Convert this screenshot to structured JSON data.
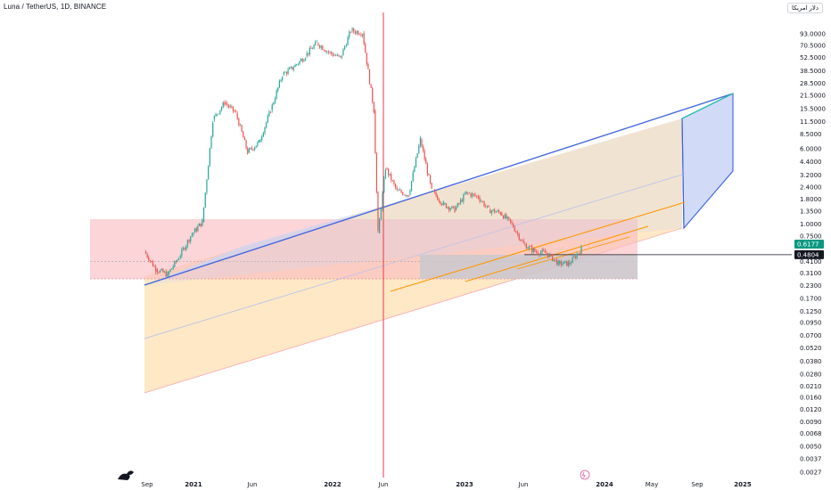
{
  "header": {
    "symbol_line": "Luna / TetherUS, 1D, BINANCE",
    "currency_label": "دلار امریکا"
  },
  "colors": {
    "up": "#26a69a",
    "down": "#ef5350",
    "channel_blue_fill": "#c9d5f7",
    "channel_blue_line": "#3d62e0",
    "orange_fill": "#ffe0b2",
    "orange_line": "#ff9800",
    "red_zone": "#f8b9be",
    "gray_zone": "#c4c8cf",
    "teal_segment": "#2bbfae",
    "vertical_line": "#f23645",
    "current_price_label_bg": "#089981",
    "crosshair_label_bg": "#131722"
  },
  "chart_data": {
    "type": "line",
    "title": "Luna / TetherUS, 1D, BINANCE",
    "y_scale": "log",
    "ylim": [
      0.0027,
      130
    ],
    "y_ticks": [
      "93.0000",
      "70.5000",
      "52.5000",
      "38.5000",
      "28.5000",
      "21.5000",
      "15.5000",
      "11.5000",
      "8.5000",
      "6.0000",
      "4.4000",
      "3.2000",
      "2.4000",
      "1.8000",
      "1.3500",
      "1.0000",
      "0.7500",
      "0.4100",
      "0.3100",
      "0.2300",
      "0.1700",
      "0.1250",
      "0.0950",
      "0.0700",
      "0.0520",
      "0.0380",
      "0.0280",
      "0.0210",
      "0.0160",
      "0.0120",
      "0.0090",
      "0.0068",
      "0.0050",
      "0.0037",
      "0.0027"
    ],
    "x_ticks": [
      "Sep",
      "2021",
      "Jun",
      "2022",
      "Jun",
      "2023",
      "Jun",
      "2024",
      "May",
      "Sep",
      "2025"
    ],
    "x_ticks_bold": [
      "2021",
      "2022",
      "2023",
      "2024",
      "2025"
    ],
    "series": [
      {
        "x": [
          "2020-09-01",
          "2020-10-01",
          "2020-11-01",
          "2020-12-01",
          "2021-01-01",
          "2021-02-01",
          "2021-03-01",
          "2021-04-01",
          "2021-05-01",
          "2021-06-01",
          "2021-07-01",
          "2021-08-01",
          "2021-09-01",
          "2021-10-01",
          "2021-11-01",
          "2021-12-01",
          "2022-01-01",
          "2022-02-01",
          "2022-03-01",
          "2022-04-01",
          "2022-05-01",
          "2022-05-12",
          "2022-06-01",
          "2022-07-01",
          "2022-08-01",
          "2022-09-01",
          "2022-10-01",
          "2022-11-01",
          "2022-12-01",
          "2023-01-01",
          "2023-02-01",
          "2023-03-01",
          "2023-04-01",
          "2023-05-01",
          "2023-06-01",
          "2023-07-01",
          "2023-08-01",
          "2023-09-01",
          "2023-10-01",
          "2023-11-01"
        ],
        "values": [
          0.52,
          0.34,
          0.3,
          0.45,
          0.75,
          1.05,
          12,
          18,
          14,
          5.5,
          7,
          15,
          35,
          42,
          55,
          75,
          60,
          52,
          100,
          95,
          15,
          0.8,
          3.8,
          2.2,
          2.0,
          7.5,
          2.2,
          1.6,
          1.4,
          2.1,
          1.9,
          1.4,
          1.3,
          1.0,
          0.62,
          0.52,
          0.5,
          0.39,
          0.39,
          0.55
        ]
      }
    ],
    "price_labels": [
      "0.6177",
      "0.4804"
    ],
    "drawings": {
      "blue_channel_top_end": 20.5,
      "blue_channel_bottom_end": 0.82,
      "red_zone_range": [
        0.27,
        1.12
      ],
      "gray_zone_range": [
        0.27,
        0.48
      ],
      "vertical_line_date": "2022-06-01",
      "horizontal_line_price": 0.4804
    },
    "xlabel": "",
    "ylabel": ""
  }
}
